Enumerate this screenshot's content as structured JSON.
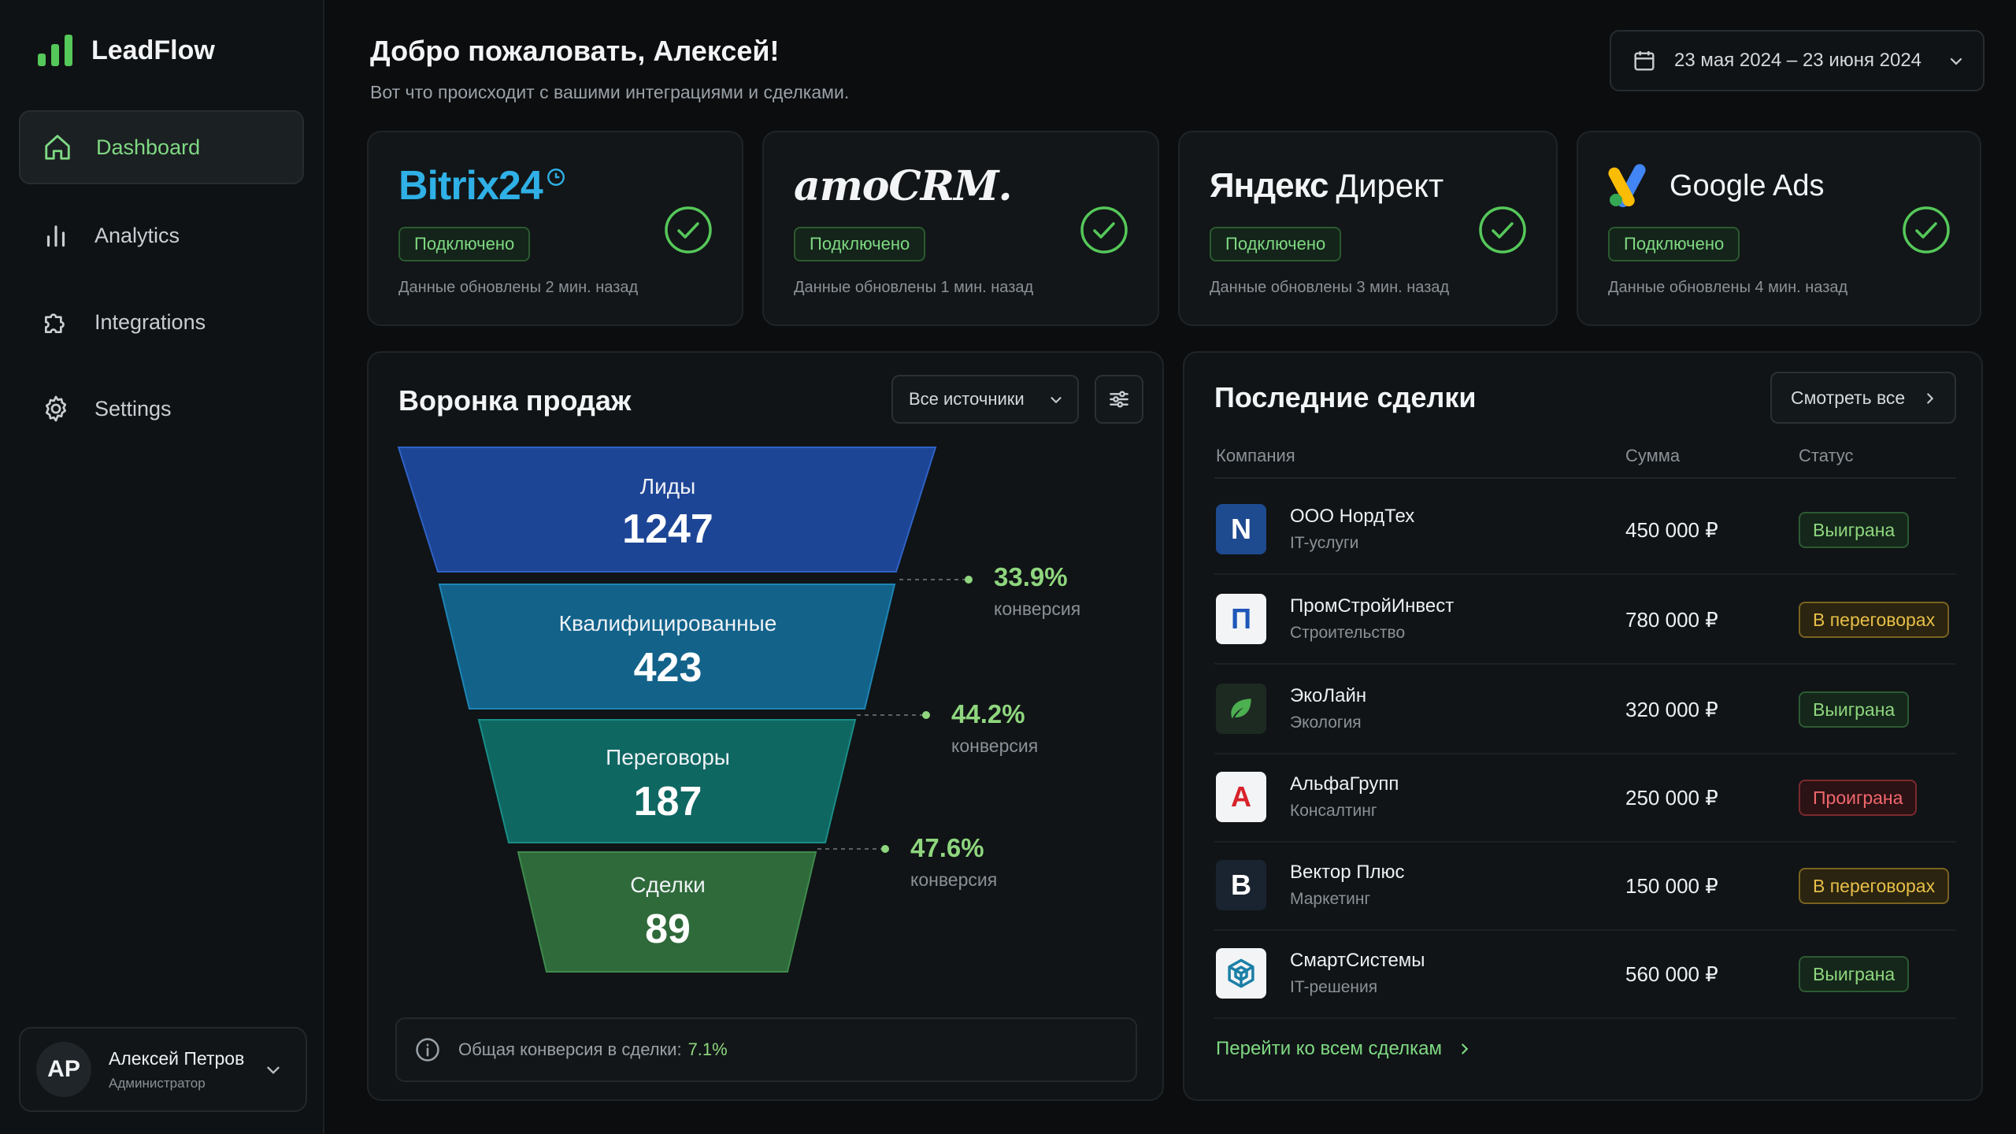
{
  "app": {
    "name": "LeadFlow"
  },
  "nav": [
    {
      "label": "Dashboard",
      "icon": "home-icon",
      "active": true
    },
    {
      "label": "Analytics",
      "icon": "bar-chart-icon",
      "active": false
    },
    {
      "label": "Integrations",
      "icon": "puzzle-icon",
      "active": false
    },
    {
      "label": "Settings",
      "icon": "gear-icon",
      "active": false
    }
  ],
  "user": {
    "initials": "AP",
    "name": "Алексей Петров",
    "role": "Администратор"
  },
  "header": {
    "greeting": "Добро пожаловать, Алексей!",
    "subtitle": "Вот что происходит с вашими интеграциями и сделками.",
    "date_range": "23 мая 2024 – 23 июня 2024"
  },
  "integrations": [
    {
      "name": "Bitrix24",
      "status": "Подключено",
      "updated": "Данные обновлены 2 мин. назад"
    },
    {
      "name": "amoCRM.",
      "status": "Подключено",
      "updated": "Данные обновлены 1 мин. назад"
    },
    {
      "name": "Яндекс Директ",
      "name_a": "Яндекс",
      "name_b": "Директ",
      "status": "Подключено",
      "updated": "Данные обновлены 3 мин. назад"
    },
    {
      "name": "Google Ads",
      "status": "Подключено",
      "updated": "Данные обновлены 4 мин. назад"
    }
  ],
  "funnel": {
    "title": "Воронка продаж",
    "source_filter": "Все источники",
    "stages": [
      {
        "label": "Лиды",
        "value": "1247"
      },
      {
        "label": "Квалифицированные",
        "value": "423"
      },
      {
        "label": "Переговоры",
        "value": "187"
      },
      {
        "label": "Сделки",
        "value": "89"
      }
    ],
    "conversions": [
      {
        "pct": "33.9%",
        "label": "конверсия"
      },
      {
        "pct": "44.2%",
        "label": "конверсия"
      },
      {
        "pct": "47.6%",
        "label": "конверсия"
      }
    ],
    "summary_label": "Общая конверсия в сделки:",
    "summary_value": "7.1%",
    "colors": [
      "#1d4596",
      "#12628a",
      "#0f6762",
      "#2f6a3a"
    ]
  },
  "deals": {
    "title": "Последние сделки",
    "view_all": "Смотреть все",
    "columns": {
      "company": "Компания",
      "sum": "Сумма",
      "status": "Статус"
    },
    "rows": [
      {
        "logo": "N",
        "logo_bg": "#1e4a8f",
        "logo_fg": "#ffffff",
        "company": "ООО НордТех",
        "industry": "IT-услуги",
        "sum": "450 000 ₽",
        "status": "Выиграна",
        "status_type": "won"
      },
      {
        "logo": "П",
        "logo_bg": "#f2f4f6",
        "logo_fg": "#1f56b8",
        "company": "ПромСтройИнвест",
        "industry": "Строительство",
        "sum": "780 000 ₽",
        "status": "В переговорах",
        "status_type": "neg"
      },
      {
        "logo": "leaf",
        "logo_bg": "#1d2a22",
        "logo_fg": "#4caf50",
        "company": "ЭкоЛайн",
        "industry": "Экология",
        "sum": "320 000 ₽",
        "status": "Выиграна",
        "status_type": "won"
      },
      {
        "logo": "A",
        "logo_bg": "#f2f4f6",
        "logo_fg": "#d8232a",
        "company": "АльфаГрупп",
        "industry": "Консалтинг",
        "sum": "250 000 ₽",
        "status": "Проиграна",
        "status_type": "lost"
      },
      {
        "logo": "B",
        "logo_bg": "#1a2430",
        "logo_fg": "#ffffff",
        "company": "Вектор Плюс",
        "industry": "Маркетинг",
        "sum": "150 000 ₽",
        "status": "В переговорах",
        "status_type": "neg"
      },
      {
        "logo": "cube",
        "logo_bg": "#f2f4f6",
        "logo_fg": "#1b7fa6",
        "company": "СмартСистемы",
        "industry": "IT-решения",
        "sum": "560 000 ₽",
        "status": "Выиграна",
        "status_type": "won"
      }
    ],
    "all_link": "Перейти ко всем сделкам"
  }
}
